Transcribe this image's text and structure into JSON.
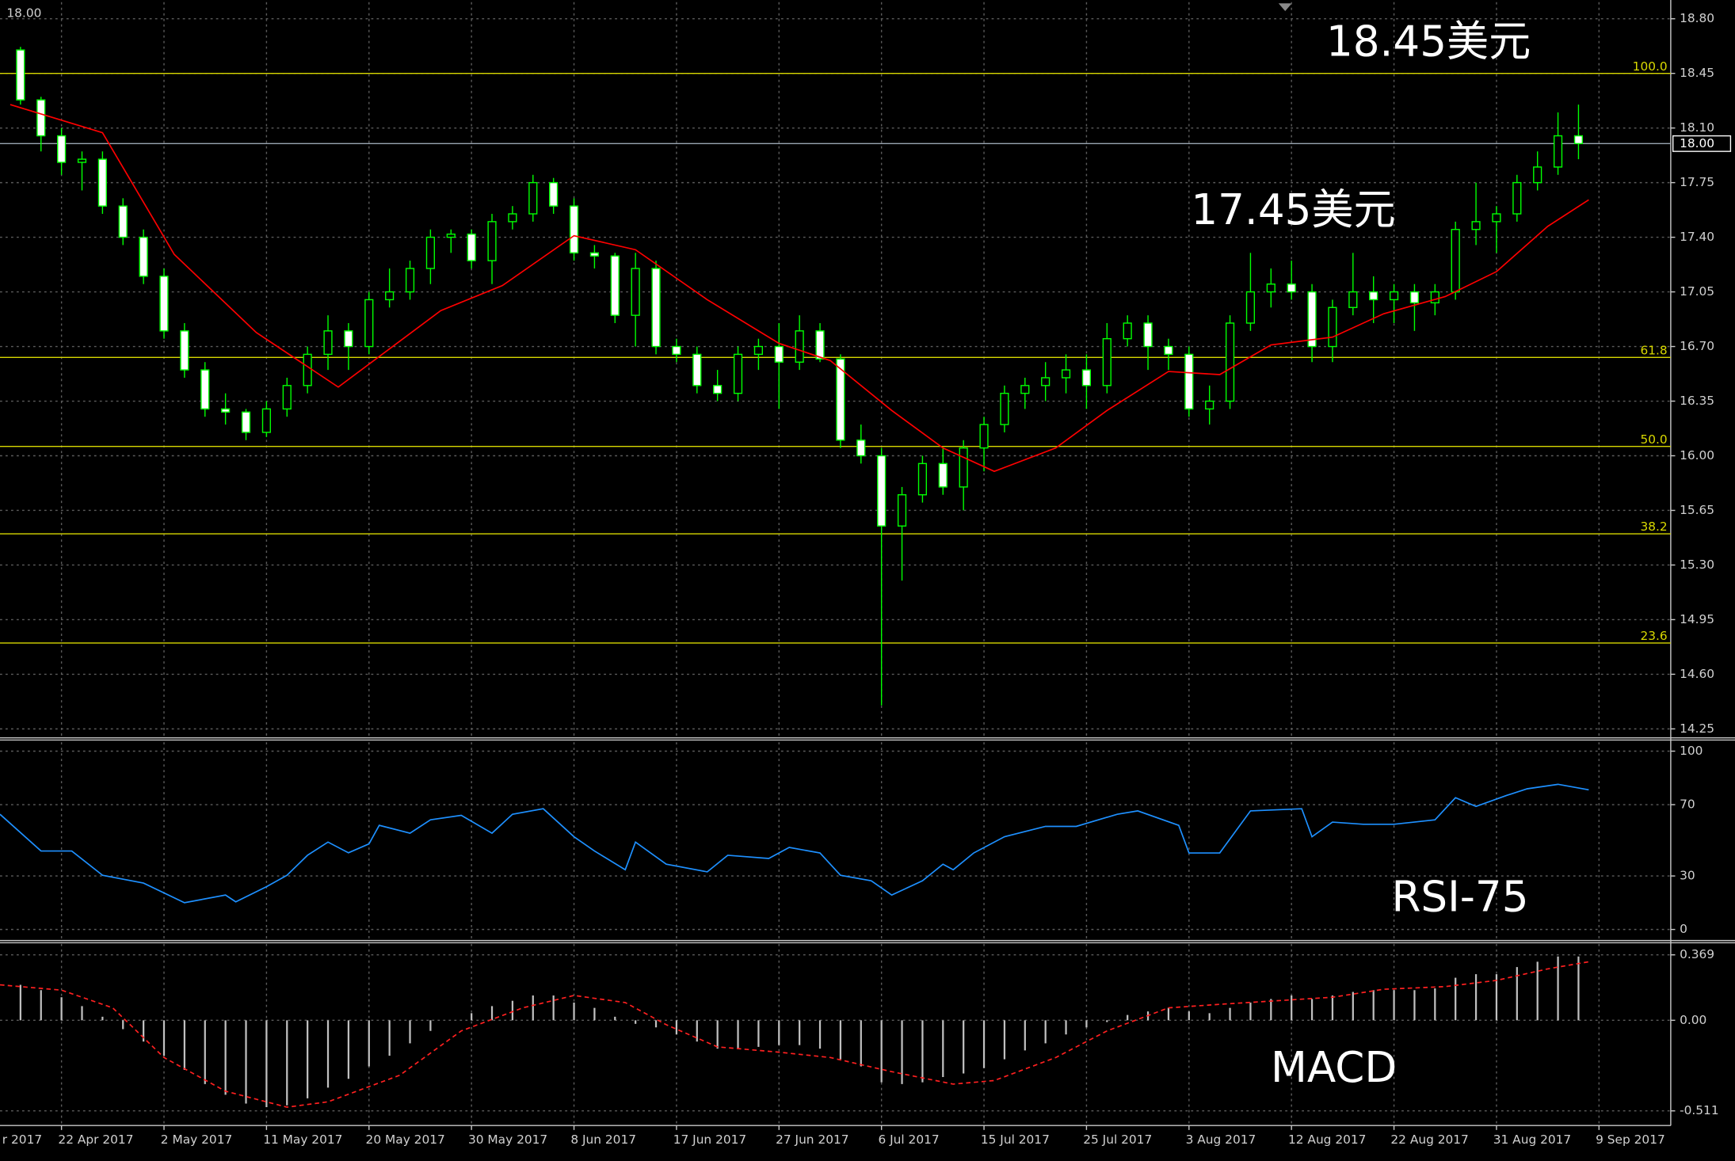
{
  "chart_data": [
    {
      "type": "candlestick",
      "top_label": "18.00",
      "annotations": [
        "18.45美元",
        "17.45美元"
      ],
      "colors": {
        "wick": "#00ff00",
        "up_body": "#000000",
        "down_body": "#ffffff",
        "up_stroke": "#00ff00",
        "down_stroke": "#00ff00"
      },
      "x": [
        6,
        8,
        10,
        12,
        14,
        16,
        18,
        20,
        22,
        24,
        26,
        28,
        30,
        32,
        34,
        36,
        38,
        40,
        42,
        44,
        46,
        48,
        50,
        52,
        54,
        56,
        58,
        60,
        62,
        64,
        66,
        68,
        70,
        72,
        74,
        76,
        78,
        80,
        82,
        84,
        86,
        88,
        90,
        92,
        94,
        96,
        98,
        100,
        102,
        104,
        106,
        108,
        110,
        112,
        114,
        116,
        118,
        120,
        122,
        124,
        126,
        128,
        130,
        132,
        134,
        136,
        138,
        140,
        142,
        144,
        146,
        148,
        150,
        152,
        154,
        156,
        158
      ],
      "ohlc": [
        [
          18.6,
          18.62,
          18.25,
          18.28
        ],
        [
          18.28,
          18.3,
          17.95,
          18.05
        ],
        [
          18.05,
          18.1,
          17.8,
          17.88
        ],
        [
          17.88,
          17.95,
          17.7,
          17.9
        ],
        [
          17.9,
          17.95,
          17.55,
          17.6
        ],
        [
          17.6,
          17.65,
          17.35,
          17.4
        ],
        [
          17.4,
          17.45,
          17.1,
          17.15
        ],
        [
          17.15,
          17.2,
          16.75,
          16.8
        ],
        [
          16.8,
          16.85,
          16.5,
          16.55
        ],
        [
          16.55,
          16.6,
          16.25,
          16.3
        ],
        [
          16.3,
          16.4,
          16.2,
          16.28
        ],
        [
          16.28,
          16.3,
          16.1,
          16.15
        ],
        [
          16.15,
          16.35,
          16.12,
          16.3
        ],
        [
          16.3,
          16.5,
          16.25,
          16.45
        ],
        [
          16.45,
          16.7,
          16.4,
          16.65
        ],
        [
          16.65,
          16.9,
          16.55,
          16.8
        ],
        [
          16.8,
          16.85,
          16.55,
          16.7
        ],
        [
          16.7,
          17.05,
          16.65,
          17.0
        ],
        [
          17.0,
          17.2,
          16.95,
          17.05
        ],
        [
          17.05,
          17.25,
          17.0,
          17.2
        ],
        [
          17.2,
          17.45,
          17.1,
          17.4
        ],
        [
          17.4,
          17.45,
          17.3,
          17.42
        ],
        [
          17.42,
          17.45,
          17.2,
          17.25
        ],
        [
          17.25,
          17.55,
          17.1,
          17.5
        ],
        [
          17.5,
          17.6,
          17.45,
          17.55
        ],
        [
          17.55,
          17.8,
          17.5,
          17.75
        ],
        [
          17.75,
          17.78,
          17.55,
          17.6
        ],
        [
          17.6,
          17.65,
          17.25,
          17.3
        ],
        [
          17.3,
          17.35,
          17.2,
          17.28
        ],
        [
          17.28,
          17.3,
          16.85,
          16.9
        ],
        [
          16.9,
          17.3,
          16.7,
          17.2
        ],
        [
          17.2,
          17.25,
          16.65,
          16.7
        ],
        [
          16.7,
          16.75,
          16.6,
          16.65
        ],
        [
          16.65,
          16.7,
          16.4,
          16.45
        ],
        [
          16.45,
          16.55,
          16.35,
          16.4
        ],
        [
          16.4,
          16.7,
          16.35,
          16.65
        ],
        [
          16.65,
          16.75,
          16.55,
          16.7
        ],
        [
          16.7,
          16.85,
          16.3,
          16.6
        ],
        [
          16.6,
          16.9,
          16.55,
          16.8
        ],
        [
          16.8,
          16.85,
          16.6,
          16.62
        ],
        [
          16.62,
          16.65,
          16.05,
          16.1
        ],
        [
          16.1,
          16.2,
          15.95,
          16.0
        ],
        [
          16.0,
          16.05,
          14.4,
          15.55
        ],
        [
          15.55,
          15.8,
          15.2,
          15.75
        ],
        [
          15.75,
          16.0,
          15.7,
          15.95
        ],
        [
          15.95,
          16.05,
          15.75,
          15.8
        ],
        [
          15.8,
          16.1,
          15.65,
          16.05
        ],
        [
          16.05,
          16.25,
          15.9,
          16.2
        ],
        [
          16.2,
          16.45,
          16.15,
          16.4
        ],
        [
          16.4,
          16.5,
          16.3,
          16.45
        ],
        [
          16.45,
          16.6,
          16.35,
          16.5
        ],
        [
          16.5,
          16.65,
          16.4,
          16.55
        ],
        [
          16.55,
          16.65,
          16.3,
          16.45
        ],
        [
          16.45,
          16.85,
          16.4,
          16.75
        ],
        [
          16.75,
          16.9,
          16.7,
          16.85
        ],
        [
          16.85,
          16.9,
          16.55,
          16.7
        ],
        [
          16.7,
          16.75,
          16.55,
          16.65
        ],
        [
          16.65,
          16.7,
          16.25,
          16.3
        ],
        [
          16.3,
          16.45,
          16.2,
          16.35
        ],
        [
          16.35,
          16.9,
          16.3,
          16.85
        ],
        [
          16.85,
          17.3,
          16.8,
          17.05
        ],
        [
          17.05,
          17.2,
          16.95,
          17.1
        ],
        [
          17.1,
          17.25,
          17.0,
          17.05
        ],
        [
          17.05,
          17.1,
          16.6,
          16.7
        ],
        [
          16.7,
          17.0,
          16.6,
          16.95
        ],
        [
          16.95,
          17.3,
          16.9,
          17.05
        ],
        [
          17.05,
          17.15,
          16.85,
          17.0
        ],
        [
          17.0,
          17.1,
          16.85,
          17.05
        ],
        [
          17.05,
          17.1,
          16.8,
          16.98
        ],
        [
          16.98,
          17.1,
          16.9,
          17.05
        ],
        [
          17.05,
          17.5,
          17.0,
          17.45
        ],
        [
          17.45,
          17.75,
          17.35,
          17.5
        ],
        [
          17.5,
          17.6,
          17.3,
          17.55
        ],
        [
          17.55,
          17.8,
          17.5,
          17.75
        ],
        [
          17.75,
          17.95,
          17.7,
          17.85
        ],
        [
          17.85,
          18.2,
          17.8,
          18.05
        ],
        [
          18.05,
          18.25,
          17.9,
          18.0
        ]
      ],
      "overlays": [
        {
          "type": "line",
          "color": "#ff0000",
          "x": [
            5,
            14,
            21,
            29,
            37,
            47,
            53,
            60,
            66,
            73,
            80,
            85,
            91,
            96,
            101,
            107,
            112,
            118,
            123,
            128,
            134,
            139,
            145,
            150,
            155,
            159
          ],
          "values": [
            18.25,
            18.07,
            17.29,
            16.79,
            16.44,
            16.93,
            17.09,
            17.41,
            17.32,
            17.0,
            16.72,
            16.61,
            16.29,
            16.05,
            15.9,
            16.05,
            16.29,
            16.54,
            16.52,
            16.71,
            16.76,
            16.91,
            17.02,
            17.18,
            17.47,
            17.64
          ]
        }
      ],
      "levels": [
        {
          "label": "100.0",
          "value": 18.45
        },
        {
          "label": "61.8",
          "value": 16.63
        },
        {
          "label": "50.0",
          "value": 16.06
        },
        {
          "label": "38.2",
          "value": 15.5
        },
        {
          "label": "23.6",
          "value": 14.8
        }
      ],
      "level_color": "#d8d800",
      "current_price": {
        "value": 18,
        "label": "18.00"
      },
      "xlim": [
        4,
        167
      ],
      "ylim": [
        14.207,
        18.906
      ],
      "yticks": [
        {
          "value": 18.8,
          "label": "18.80"
        },
        18.45,
        {
          "value": 18.1,
          "label": "18.10"
        },
        17.75,
        {
          "value": 17.4,
          "label": "17.40"
        },
        17.05,
        {
          "value": 16.7,
          "label": "16.70"
        },
        16.35,
        {
          "value": 16,
          "label": "16.00"
        },
        15.65,
        {
          "value": 15.3,
          "label": "15.30"
        },
        14.95,
        {
          "value": 14.6,
          "label": "14.60"
        },
        14.25
      ],
      "grid": true
    },
    {
      "type": "line",
      "label": "RSI-75",
      "series": [
        {
          "color": "#1e90ff",
          "x": [
            4,
            8,
            11,
            14,
            18,
            22,
            26,
            27,
            30,
            32,
            34,
            36,
            38,
            40,
            41,
            44,
            46,
            49,
            52,
            54,
            57,
            60,
            62,
            65,
            66,
            69,
            73,
            75,
            79,
            81,
            84,
            86,
            89,
            91,
            94,
            96,
            97,
            99,
            102,
            106,
            109,
            113,
            115,
            119,
            120,
            123,
            126,
            131,
            132,
            134,
            137,
            140,
            144,
            146,
            148,
            151,
            153,
            156,
            159
          ],
          "values": [
            64.6,
            44,
            44,
            30.4,
            26,
            15,
            19.3,
            15.5,
            24,
            30.4,
            41.6,
            49,
            43,
            48,
            58.4,
            54,
            61.5,
            64,
            54,
            64.6,
            67.7,
            52,
            44,
            33.5,
            49,
            36.6,
            32.3,
            41.6,
            39.8,
            46,
            42.9,
            30.4,
            27.3,
            19.3,
            27.3,
            36.6,
            33.5,
            42.9,
            52,
            57.8,
            57.8,
            64.6,
            66.5,
            58.4,
            42.9,
            42.9,
            66.5,
            67.7,
            52,
            60.2,
            59,
            59,
            61.5,
            73.9,
            69,
            75.2,
            78.9,
            81.4,
            78.3
          ]
        }
      ],
      "xlim": [
        4,
        167
      ],
      "ylim": [
        -5.6,
        105
      ],
      "yticks": [
        100,
        70,
        30,
        0
      ],
      "grid": true
    },
    {
      "type": "macd",
      "label": "MACD",
      "histogram": {
        "color": "#c0c0c0",
        "x": [
          6,
          8,
          10,
          12,
          14,
          16,
          18,
          20,
          22,
          24,
          26,
          28,
          30,
          32,
          34,
          36,
          38,
          40,
          42,
          44,
          46,
          48,
          50,
          52,
          54,
          56,
          58,
          60,
          62,
          64,
          66,
          68,
          70,
          72,
          74,
          76,
          78,
          80,
          82,
          84,
          86,
          88,
          90,
          92,
          94,
          96,
          98,
          100,
          102,
          104,
          106,
          108,
          110,
          112,
          114,
          116,
          118,
          120,
          122,
          124,
          126,
          128,
          130,
          132,
          134,
          136,
          138,
          140,
          142,
          144,
          146,
          148,
          150,
          152,
          154,
          156,
          158
        ],
        "values": [
          0.2,
          0.17,
          0.13,
          0.08,
          0.02,
          -0.05,
          -0.12,
          -0.2,
          -0.28,
          -0.36,
          -0.42,
          -0.47,
          -0.49,
          -0.48,
          -0.44,
          -0.38,
          -0.33,
          -0.26,
          -0.2,
          -0.13,
          -0.06,
          0,
          0.04,
          0.08,
          0.11,
          0.14,
          0.14,
          0.1,
          0.07,
          0.02,
          -0.02,
          -0.04,
          -0.08,
          -0.12,
          -0.16,
          -0.16,
          -0.15,
          -0.14,
          -0.14,
          -0.16,
          -0.22,
          -0.26,
          -0.35,
          -0.36,
          -0.35,
          -0.32,
          -0.3,
          -0.27,
          -0.22,
          -0.17,
          -0.13,
          -0.08,
          -0.04,
          -0.01,
          0.03,
          0.05,
          0.07,
          0.05,
          0.04,
          0.07,
          0.1,
          0.12,
          0.14,
          0.12,
          0.14,
          0.16,
          0.17,
          0.17,
          0.17,
          0.18,
          0.24,
          0.26,
          0.26,
          0.3,
          0.33,
          0.36,
          0.36
        ]
      },
      "signal": {
        "color": "#ff2020",
        "x": [
          4,
          10,
          15,
          20,
          26,
          32,
          36,
          43,
          49,
          55,
          60,
          65,
          69,
          74,
          80,
          85,
          91,
          97,
          101,
          107,
          112,
          118,
          123,
          134,
          139,
          145,
          150,
          155,
          159
        ],
        "values": [
          0.2,
          0.17,
          0.07,
          -0.21,
          -0.4,
          -0.49,
          -0.46,
          -0.31,
          -0.06,
          0.07,
          0.14,
          0.1,
          -0.025,
          -0.15,
          -0.18,
          -0.21,
          -0.29,
          -0.36,
          -0.34,
          -0.21,
          -0.06,
          0.07,
          0.09,
          0.13,
          0.175,
          0.19,
          0.225,
          0.29,
          0.33
        ]
      },
      "xlim": [
        4,
        167
      ],
      "ylim": [
        -0.5875,
        0.431
      ],
      "yticks": [
        0.369,
        {
          "value": 0,
          "label": "0.00"
        },
        -0.511
      ],
      "xticks": [
        {
          "value": 0,
          "label": "r 2017"
        },
        {
          "value": 10,
          "label": "22 Apr 2017"
        },
        {
          "value": 20,
          "label": "2 May 2017"
        },
        {
          "value": 30,
          "label": "11 May 2017"
        },
        {
          "value": 40,
          "label": "20 May 2017"
        },
        {
          "value": 50,
          "label": "30 May 2017"
        },
        {
          "value": 60,
          "label": "8 Jun 2017"
        },
        {
          "value": 70,
          "label": "17 Jun 2017"
        },
        {
          "value": 80,
          "label": "27 Jun 2017"
        },
        {
          "value": 90,
          "label": "6 Jul 2017"
        },
        {
          "value": 100,
          "label": "15 Jul 2017"
        },
        {
          "value": 110,
          "label": "25 Jul 2017"
        },
        {
          "value": 120,
          "label": "3 Aug 2017"
        },
        {
          "value": 130,
          "label": "12 Aug 2017"
        },
        {
          "value": 140,
          "label": "22 Aug 2017"
        },
        {
          "value": 150,
          "label": "31 Aug 2017"
        },
        {
          "value": 160,
          "label": "9 Sep 2017"
        }
      ],
      "grid": true
    }
  ]
}
